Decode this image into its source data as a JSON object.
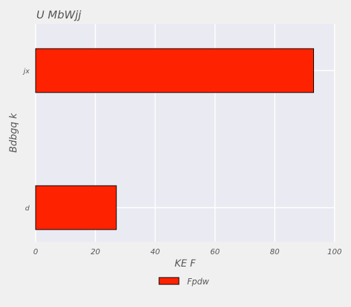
{
  "chart_data": {
    "type": "bar",
    "orientation": "horizontal",
    "title": "U   MbWjj",
    "xlabel": "KE F",
    "ylabel": "Bdbgq k",
    "categories": [
      "jx",
      "d"
    ],
    "series": [
      {
        "name": "Fpdw",
        "values": [
          93,
          27
        ],
        "color": "#ff2200"
      }
    ],
    "xlim": [
      0,
      100
    ],
    "xticks": [
      "0",
      "20",
      "40",
      "60",
      "80",
      "100"
    ],
    "grid": true,
    "legend_position": "bottom-center"
  },
  "colors": {
    "plot_background": "#eaeaf2",
    "page_background": "#f0f0f0",
    "grid": "#ffffff",
    "bar_edge": "#000000"
  }
}
